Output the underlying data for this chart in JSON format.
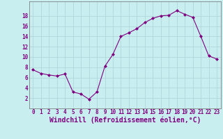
{
  "x": [
    0,
    1,
    2,
    3,
    4,
    5,
    6,
    7,
    8,
    9,
    10,
    11,
    12,
    13,
    14,
    15,
    16,
    17,
    18,
    19,
    20,
    21,
    22,
    23
  ],
  "y": [
    7.5,
    6.8,
    6.5,
    6.3,
    6.7,
    3.2,
    2.8,
    1.8,
    3.2,
    8.2,
    10.5,
    14.0,
    14.7,
    15.5,
    16.7,
    17.5,
    18.0,
    18.1,
    19.0,
    18.3,
    17.7,
    14.0,
    10.2,
    9.6
  ],
  "line_color": "#800080",
  "marker": "D",
  "marker_size": 2,
  "bg_color": "#c8eef0",
  "grid_color": "#b0d8dc",
  "xlabel": "Windchill (Refroidissement éolien,°C)",
  "ylim": [
    0,
    20
  ],
  "xlim": [
    -0.5,
    23.5
  ],
  "yticks": [
    2,
    4,
    6,
    8,
    10,
    12,
    14,
    16,
    18
  ],
  "xticks": [
    0,
    1,
    2,
    3,
    4,
    5,
    6,
    7,
    8,
    9,
    10,
    11,
    12,
    13,
    14,
    15,
    16,
    17,
    18,
    19,
    20,
    21,
    22,
    23
  ],
  "tick_color": "#800080",
  "label_color": "#800080",
  "tick_fontsize": 5.5,
  "xlabel_fontsize": 7.0,
  "spine_color": "#808080"
}
